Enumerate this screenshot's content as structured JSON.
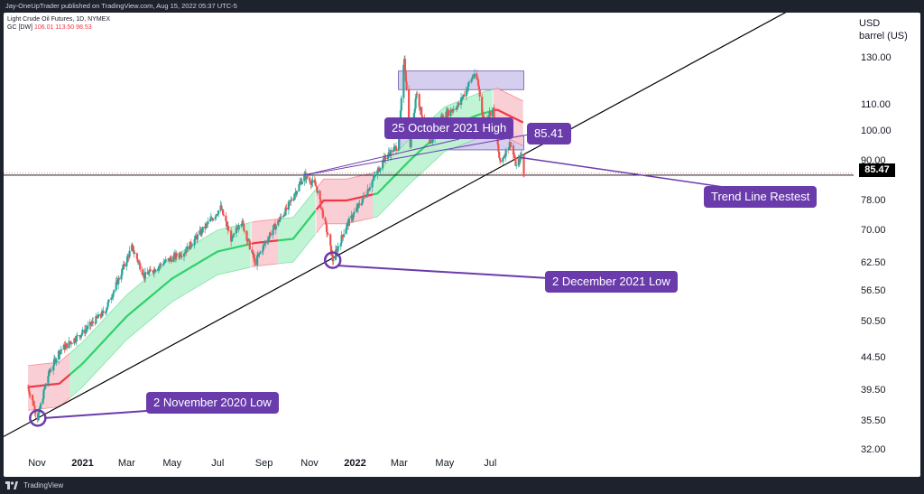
{
  "header": {
    "published_text": "Jay-OneUpTrader published on TradingView.com, Aug 15, 2022 05:37 UTC-5"
  },
  "footer": {
    "brand": "TradingView"
  },
  "legend": {
    "line1": "Light Crude Oil Futures, 1D, NYMEX",
    "line2_label": "GC [DW]",
    "line2_values": "106.01  113.50  98.53"
  },
  "axis": {
    "unit": "USD",
    "unit2": "barrel (US)"
  },
  "current_price": "85.47",
  "annotations": {
    "high_label": "25 October 2021 High",
    "high_value": "85.41",
    "dec_low": "2 December 2021 Low",
    "nov_low": "2 November 2020 Low",
    "retest": "Trend Line Restest"
  },
  "colors": {
    "band_green": "#b9f3cf",
    "band_red": "#f9c9d0",
    "line_green": "#2fd16a",
    "line_red": "#f23645",
    "callout": "#6a3bab",
    "zone": "#c8bdea",
    "candle_up": "#26a69a",
    "candle_down": "#ef5350"
  },
  "chart_data": {
    "type": "candlestick",
    "title": "Light Crude Oil Futures, 1D, NYMEX",
    "ylabel": "USD barrel (US)",
    "y_scale": "log",
    "y_ticks": [
      "130.00",
      "110.00",
      "100.00",
      "90.00",
      "78.00",
      "70.00",
      "62.50",
      "56.50",
      "50.50",
      "44.50",
      "39.50",
      "35.50",
      "32.00"
    ],
    "x_ticks": [
      {
        "label": "Nov",
        "bold": false
      },
      {
        "label": "2021",
        "bold": true
      },
      {
        "label": "Mar",
        "bold": false
      },
      {
        "label": "May",
        "bold": false
      },
      {
        "label": "Jul",
        "bold": false
      },
      {
        "label": "Sep",
        "bold": false
      },
      {
        "label": "Nov",
        "bold": false
      },
      {
        "label": "2022",
        "bold": true
      },
      {
        "label": "Mar",
        "bold": false
      },
      {
        "label": "May",
        "bold": false
      },
      {
        "label": "Jul",
        "bold": false
      }
    ],
    "price_path": [
      [
        "2020-10-20",
        40.0
      ],
      [
        "2020-11-02",
        35.8
      ],
      [
        "2020-11-15",
        41.5
      ],
      [
        "2020-12-01",
        45.5
      ],
      [
        "2020-12-31",
        48.5
      ],
      [
        "2021-01-31",
        52.5
      ],
      [
        "2021-02-20",
        59.5
      ],
      [
        "2021-03-08",
        66.0
      ],
      [
        "2021-03-25",
        59.5
      ],
      [
        "2021-04-20",
        62.5
      ],
      [
        "2021-05-18",
        65.0
      ],
      [
        "2021-06-10",
        70.0
      ],
      [
        "2021-07-05",
        76.0
      ],
      [
        "2021-07-20",
        67.5
      ],
      [
        "2021-08-01",
        73.0
      ],
      [
        "2021-08-20",
        62.5
      ],
      [
        "2021-09-10",
        69.5
      ],
      [
        "2021-10-01",
        75.5
      ],
      [
        "2021-10-25",
        85.41
      ],
      [
        "2021-11-10",
        82.0
      ],
      [
        "2021-11-26",
        68.5
      ],
      [
        "2021-12-02",
        63.0
      ],
      [
        "2021-12-20",
        71.0
      ],
      [
        "2022-01-10",
        78.0
      ],
      [
        "2022-02-10",
        91.0
      ],
      [
        "2022-02-28",
        95.0
      ],
      [
        "2022-03-08",
        130.5
      ],
      [
        "2022-03-16",
        95.0
      ],
      [
        "2022-03-24",
        115.0
      ],
      [
        "2022-04-11",
        94.5
      ],
      [
        "2022-04-25",
        104.5
      ],
      [
        "2022-05-20",
        110.0
      ],
      [
        "2022-06-08",
        122.0
      ],
      [
        "2022-06-14",
        120.0
      ],
      [
        "2022-06-22",
        104.0
      ],
      [
        "2022-07-05",
        108.0
      ],
      [
        "2022-07-14",
        89.0
      ],
      [
        "2022-07-28",
        96.0
      ],
      [
        "2022-08-05",
        88.0
      ],
      [
        "2022-08-12",
        92.0
      ],
      [
        "2022-08-15",
        85.47
      ]
    ],
    "trend_line": [
      [
        "2020-11-02",
        35.8
      ],
      [
        "2021-12-02",
        63.0
      ],
      [
        "2022-08-15",
        92.0
      ]
    ],
    "moving_average": [
      [
        "2020-10-20",
        40.0
      ],
      [
        "2020-12-01",
        40.5
      ],
      [
        "2021-01-01",
        43.5
      ],
      [
        "2021-03-01",
        51.5
      ],
      [
        "2021-05-01",
        59.0
      ],
      [
        "2021-07-01",
        65.0
      ],
      [
        "2021-08-20",
        67.0
      ],
      [
        "2021-10-10",
        68.0
      ],
      [
        "2021-11-20",
        78.0
      ],
      [
        "2021-12-20",
        78.0
      ],
      [
        "2022-01-31",
        80.0
      ],
      [
        "2022-03-15",
        90.0
      ],
      [
        "2022-05-01",
        101.0
      ],
      [
        "2022-06-15",
        106.0
      ],
      [
        "2022-07-10",
        108.0
      ],
      [
        "2022-08-15",
        103.0
      ]
    ],
    "ma_color_segments": [
      {
        "from": "2020-10-20",
        "to": "2020-12-15",
        "color": "red"
      },
      {
        "from": "2020-12-15",
        "to": "2021-08-15",
        "color": "green"
      },
      {
        "from": "2021-08-15",
        "to": "2021-09-20",
        "color": "red"
      },
      {
        "from": "2021-09-20",
        "to": "2021-11-10",
        "color": "green"
      },
      {
        "from": "2021-11-10",
        "to": "2022-01-25",
        "color": "red"
      },
      {
        "from": "2022-01-25",
        "to": "2022-07-05",
        "color": "green"
      },
      {
        "from": "2022-07-05",
        "to": "2022-08-15",
        "color": "red"
      }
    ],
    "band_width_pct": 8,
    "resistance_zones": [
      {
        "from": "2022-02-28",
        "to": "2022-08-15",
        "low": 116.0,
        "high": 124.0
      },
      {
        "from": "2022-02-28",
        "to": "2022-08-15",
        "low": 93.5,
        "high": 98.5
      }
    ],
    "horizontal_line": 85.41,
    "annotated_points": [
      {
        "label": "2 November 2020 Low",
        "date": "2020-11-02",
        "value": 35.8
      },
      {
        "label": "2 December 2021 Low",
        "date": "2021-12-02",
        "value": 63.0
      },
      {
        "label": "25 October 2021 High",
        "date": "2021-10-25",
        "value": 85.41
      }
    ]
  }
}
